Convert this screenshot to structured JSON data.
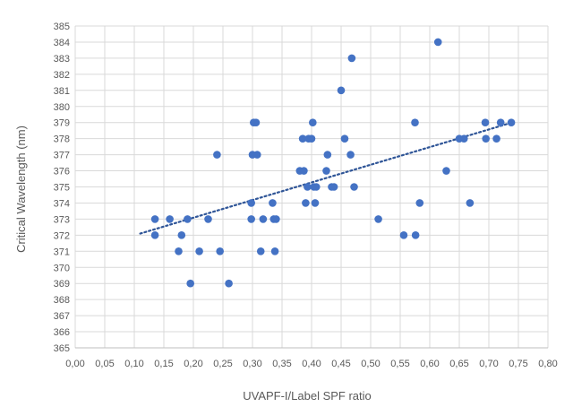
{
  "chart_data": {
    "type": "scatter",
    "title": "",
    "xlabel": "UVAPF-I/Label SPF ratio",
    "ylabel": "Critical Wavelength (nm)",
    "xlim": [
      0,
      0.8
    ],
    "ylim": [
      365,
      385
    ],
    "x_ticks": [
      "0,00",
      "0,05",
      "0,10",
      "0,15",
      "0,20",
      "0,25",
      "0,30",
      "0,35",
      "0,40",
      "0,45",
      "0,50",
      "0,55",
      "0,60",
      "0,65",
      "0,70",
      "0,75",
      "0,80"
    ],
    "y_ticks": [
      "365",
      "366",
      "367",
      "368",
      "369",
      "370",
      "371",
      "372",
      "373",
      "374",
      "375",
      "376",
      "377",
      "378",
      "379",
      "380",
      "381",
      "382",
      "383",
      "384",
      "385"
    ],
    "grid": true,
    "marker_color": "#4472c4",
    "trendline": {
      "type": "linear",
      "style": "dotted",
      "color": "#2f5597",
      "from": [
        0.11,
        372.1
      ],
      "to": [
        0.73,
        378.9
      ]
    },
    "points": [
      {
        "x": 0.135,
        "y": 373
      },
      {
        "x": 0.135,
        "y": 372
      },
      {
        "x": 0.16,
        "y": 373
      },
      {
        "x": 0.175,
        "y": 371
      },
      {
        "x": 0.18,
        "y": 372
      },
      {
        "x": 0.19,
        "y": 373
      },
      {
        "x": 0.195,
        "y": 369
      },
      {
        "x": 0.21,
        "y": 371
      },
      {
        "x": 0.225,
        "y": 373
      },
      {
        "x": 0.24,
        "y": 377
      },
      {
        "x": 0.245,
        "y": 371
      },
      {
        "x": 0.26,
        "y": 369
      },
      {
        "x": 0.298,
        "y": 374
      },
      {
        "x": 0.298,
        "y": 373
      },
      {
        "x": 0.3,
        "y": 377
      },
      {
        "x": 0.302,
        "y": 379
      },
      {
        "x": 0.306,
        "y": 379
      },
      {
        "x": 0.308,
        "y": 377
      },
      {
        "x": 0.314,
        "y": 371
      },
      {
        "x": 0.318,
        "y": 373
      },
      {
        "x": 0.334,
        "y": 374
      },
      {
        "x": 0.336,
        "y": 373
      },
      {
        "x": 0.338,
        "y": 371
      },
      {
        "x": 0.34,
        "y": 373
      },
      {
        "x": 0.38,
        "y": 376
      },
      {
        "x": 0.385,
        "y": 378
      },
      {
        "x": 0.387,
        "y": 376
      },
      {
        "x": 0.39,
        "y": 374
      },
      {
        "x": 0.393,
        "y": 375
      },
      {
        "x": 0.395,
        "y": 378
      },
      {
        "x": 0.4,
        "y": 378
      },
      {
        "x": 0.402,
        "y": 379
      },
      {
        "x": 0.404,
        "y": 375
      },
      {
        "x": 0.406,
        "y": 374
      },
      {
        "x": 0.408,
        "y": 375
      },
      {
        "x": 0.425,
        "y": 376
      },
      {
        "x": 0.427,
        "y": 377
      },
      {
        "x": 0.434,
        "y": 375
      },
      {
        "x": 0.438,
        "y": 375
      },
      {
        "x": 0.45,
        "y": 381
      },
      {
        "x": 0.456,
        "y": 378
      },
      {
        "x": 0.466,
        "y": 377
      },
      {
        "x": 0.468,
        "y": 383
      },
      {
        "x": 0.472,
        "y": 375
      },
      {
        "x": 0.513,
        "y": 373
      },
      {
        "x": 0.556,
        "y": 372
      },
      {
        "x": 0.575,
        "y": 379
      },
      {
        "x": 0.576,
        "y": 372
      },
      {
        "x": 0.583,
        "y": 374
      },
      {
        "x": 0.614,
        "y": 384
      },
      {
        "x": 0.628,
        "y": 376
      },
      {
        "x": 0.65,
        "y": 378
      },
      {
        "x": 0.658,
        "y": 378
      },
      {
        "x": 0.668,
        "y": 374
      },
      {
        "x": 0.694,
        "y": 379
      },
      {
        "x": 0.695,
        "y": 378
      },
      {
        "x": 0.713,
        "y": 378
      },
      {
        "x": 0.72,
        "y": 379
      },
      {
        "x": 0.738,
        "y": 379
      }
    ]
  }
}
